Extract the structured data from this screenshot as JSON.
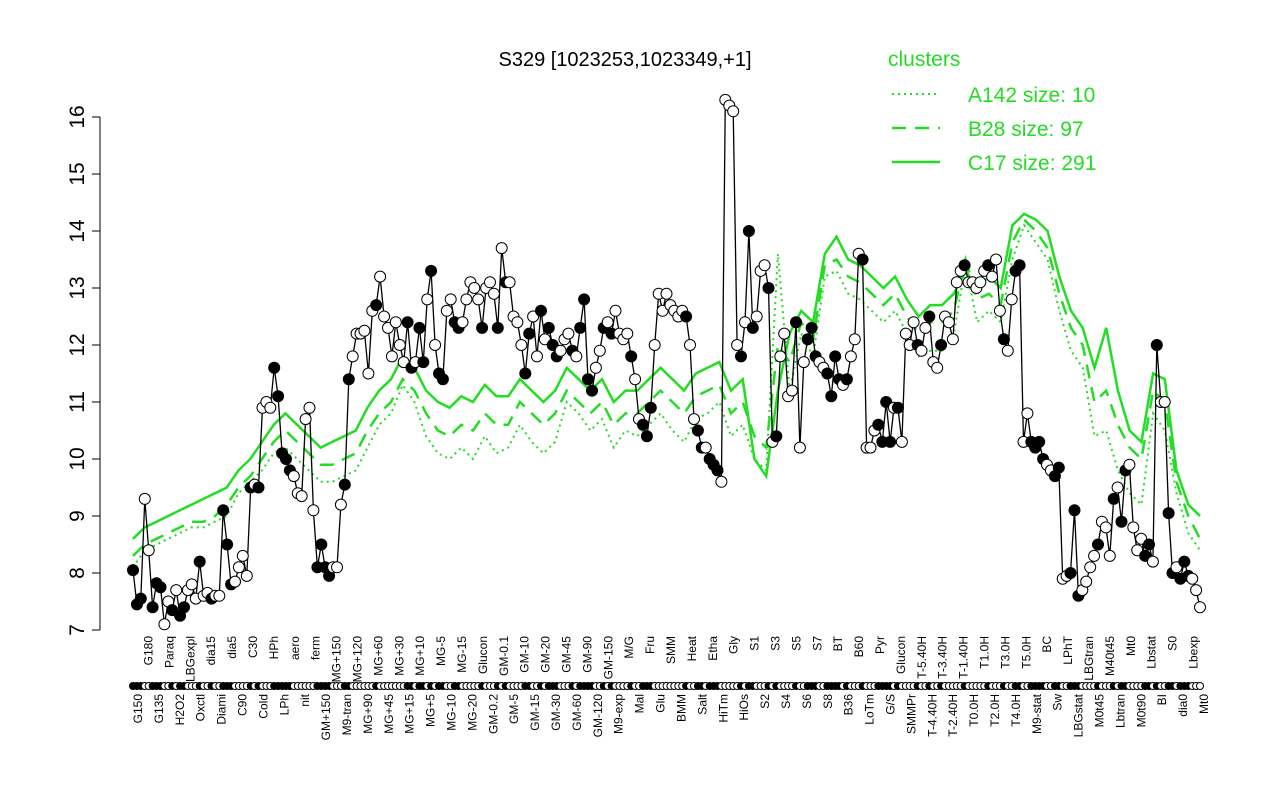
{
  "chart_data": {
    "type": "line",
    "title": "S329 [1023253,1023349,+1]",
    "xlabel": "",
    "ylabel": "",
    "ylim": [
      7,
      16.5
    ],
    "yticks": [
      7,
      8,
      9,
      10,
      11,
      12,
      13,
      14,
      15,
      16
    ],
    "grid": false,
    "legend_position": "top-right",
    "legend": {
      "title": "clusters",
      "entries": [
        {
          "label": "A142 size: 10",
          "style": "dotted"
        },
        {
          "label": "B28 size: 97",
          "style": "dashed"
        },
        {
          "label": "C17 size: 291",
          "style": "solid"
        }
      ]
    },
    "xtick_labels": [
      "G150",
      "G180",
      "G135",
      "Paraq",
      "H2O2",
      "LBGexpl",
      "Oxctl",
      "dia15",
      "Diami",
      "dia5",
      "C90",
      "C30",
      "Cold",
      "HPh",
      "LPh",
      "aero",
      "nit",
      "ferm",
      "GM+150",
      "MG+150",
      "M9-tran",
      "MG+120",
      "MG+90",
      "MG+60",
      "MG+45",
      "MG+30",
      "MG+15",
      "MG+10",
      "MG+5",
      "MG-5",
      "MG-10",
      "MG-15",
      "MG-20",
      "Glucon",
      "GM-0.2",
      "GM-0.1",
      "GM-5",
      "GM-10",
      "GM-15",
      "GM-20",
      "GM-30",
      "GM-45",
      "GM-60",
      "GM-90",
      "GM-120",
      "GM-150",
      "M9-exp",
      "M/G",
      "Mal",
      "Fru",
      "Glu",
      "SMM",
      "BMM",
      "Heat",
      "Salt",
      "Etha",
      "HiTm",
      "Gly",
      "HiOs",
      "S1",
      "S2",
      "S3",
      "S4",
      "S5",
      "S6",
      "S7",
      "S8",
      "BT",
      "B36",
      "B60",
      "LoTm",
      "Pyr",
      "G/S",
      "Glucon",
      "SMMPr",
      "T-5.40H",
      "T-4.40H",
      "T-3.40H",
      "T-2.40H",
      "T-1.40H",
      "T0.0H",
      "T1.0H",
      "T2.0H",
      "T3.0H",
      "T4.0H",
      "T5.0H",
      "M9-stat",
      "BC",
      "Sw",
      "LPhT",
      "LBGstat",
      "LBGtran",
      "M0t45",
      "M40t45",
      "Lbtran",
      "Mt0",
      "M0t90",
      "Lbstat",
      "BI",
      "S0",
      "dia0",
      "Lbexp",
      "Mt0"
    ],
    "series": [
      {
        "name": "S329",
        "values": [
          8.05,
          7.45,
          7.55,
          9.3,
          8.4,
          7.4,
          7.82,
          7.75,
          7.1,
          7.5,
          7.35,
          7.7,
          7.25,
          7.4,
          7.7,
          7.8,
          7.55,
          8.2,
          7.6,
          7.65,
          7.55,
          7.6,
          7.6,
          9.1,
          8.5,
          7.8,
          7.85,
          8.1,
          8.3,
          7.95,
          9.5,
          9.55,
          9.5,
          10.9,
          11.0,
          10.9,
          11.6,
          11.1,
          10.1,
          10.0,
          9.8,
          9.7,
          9.4,
          9.35,
          10.7,
          10.9,
          9.1,
          8.1,
          8.5,
          8.1,
          7.95,
          8.1,
          8.1,
          9.2,
          9.55,
          11.4,
          11.8,
          12.2,
          12.2,
          12.25,
          11.5,
          12.6,
          12.7,
          13.2,
          12.5,
          12.3,
          11.8,
          12.4,
          12.0,
          11.7,
          12.4,
          11.6,
          11.7,
          12.3,
          11.7,
          12.8,
          13.3,
          12.0,
          11.5,
          11.4,
          12.6,
          12.8,
          12.4,
          12.3,
          12.4,
          12.8,
          13.1,
          13.0,
          12.8,
          12.3,
          13.0,
          13.1,
          12.9,
          12.3,
          13.7,
          13.1,
          13.1,
          12.5,
          12.4,
          12.0,
          11.5,
          12.2,
          12.5,
          11.8,
          12.6,
          12.1,
          12.3,
          12.0,
          11.8,
          11.9,
          12.1,
          12.2,
          11.9,
          11.8,
          12.3,
          12.8,
          11.4,
          11.2,
          11.6,
          11.9,
          12.3,
          12.4,
          12.2,
          12.6,
          12.2,
          12.1,
          12.2,
          11.8,
          11.4,
          10.7,
          10.6,
          10.4,
          10.9,
          12.0,
          12.9,
          12.6,
          12.9,
          12.7,
          12.6,
          12.5,
          12.6,
          12.5,
          12.0,
          10.7,
          10.5,
          10.2,
          10.2,
          10.0,
          9.9,
          9.8,
          9.6,
          16.3,
          16.2,
          16.1,
          12.0,
          11.8,
          12.4,
          14.0,
          12.3,
          12.5,
          13.3,
          13.4,
          13.0,
          10.3,
          10.4,
          11.8,
          12.2,
          11.1,
          11.2,
          12.4,
          10.2,
          11.7,
          12.1,
          12.3,
          11.8,
          11.7,
          11.6,
          11.5,
          11.1,
          11.8,
          11.4,
          11.3,
          11.4,
          11.8,
          12.1,
          13.6,
          13.5,
          10.2,
          10.2,
          10.5,
          10.6,
          10.3,
          11.0,
          10.3,
          10.9,
          10.9,
          10.3,
          12.2,
          12.0,
          12.4,
          12.0,
          11.9,
          12.3,
          12.5,
          11.7,
          11.6,
          12.0,
          12.5,
          12.4,
          12.1,
          13.1,
          13.3,
          13.4,
          13.1,
          13.1,
          13.0,
          13.1,
          13.3,
          13.4,
          13.2,
          13.5,
          12.6,
          12.1,
          11.9,
          12.8,
          13.3,
          13.4,
          10.3,
          10.8,
          10.3,
          10.2,
          10.3,
          10.0,
          9.9,
          9.8,
          9.7,
          9.85,
          7.9,
          7.95,
          8.0,
          9.1,
          7.6,
          7.7,
          7.85,
          8.1,
          8.3,
          8.5,
          8.9,
          8.8,
          8.3,
          9.3,
          9.5,
          8.9,
          9.8,
          9.9,
          8.8,
          8.4,
          8.6,
          8.3,
          8.5,
          8.2,
          12.0,
          11.0,
          11.0,
          9.05,
          8.0,
          8.1,
          7.9,
          8.2,
          7.95,
          7.9,
          7.7,
          7.4
        ],
        "markers_hollow": [
          false,
          false,
          false,
          true,
          true,
          false,
          false,
          false,
          true,
          true,
          false,
          true,
          false,
          false,
          true,
          true,
          true,
          false,
          true,
          true,
          false,
          true,
          true,
          false,
          false,
          false,
          true,
          true,
          true,
          true,
          false,
          true,
          false,
          true,
          true,
          true,
          false,
          false,
          false,
          false,
          false,
          true,
          true,
          true,
          true,
          true,
          true,
          false,
          false,
          false,
          false,
          true,
          true,
          true,
          false,
          false,
          true,
          true,
          true,
          true,
          true,
          true,
          false,
          true,
          true,
          true,
          true,
          true,
          true,
          true,
          false,
          false,
          true,
          false,
          false,
          true,
          false,
          true,
          false,
          false,
          true,
          true,
          false,
          false,
          true,
          true,
          true,
          true,
          true,
          false,
          true,
          true,
          true,
          false,
          true,
          false,
          true,
          true,
          true,
          true,
          false,
          false,
          true,
          true,
          false,
          true,
          false,
          false,
          false,
          true,
          true,
          true,
          false,
          true,
          false,
          false,
          false,
          false,
          true,
          true,
          false,
          true,
          false,
          true,
          true,
          true,
          true,
          false,
          true,
          true,
          false,
          false,
          false,
          true,
          true,
          true,
          true,
          true,
          true,
          true,
          true,
          false,
          true,
          true,
          false,
          false,
          true,
          false,
          false,
          false,
          true,
          true,
          true,
          true,
          true,
          false,
          true,
          false,
          false,
          true,
          true,
          true,
          false,
          true,
          false,
          true,
          true,
          true,
          true,
          false,
          true,
          true,
          false,
          false,
          false,
          true,
          true,
          false,
          false,
          false,
          false,
          true,
          false,
          true,
          true,
          true,
          false,
          true,
          true,
          true,
          false,
          false,
          false,
          false,
          true,
          false,
          true,
          true,
          true,
          true,
          false,
          true,
          true,
          false,
          true,
          true,
          false,
          true,
          true,
          true,
          true,
          true,
          false,
          true,
          true,
          true,
          true,
          true,
          false,
          true,
          true,
          true,
          false,
          true,
          true,
          false,
          false,
          true,
          true,
          false,
          false,
          false,
          false,
          true,
          true,
          false,
          false,
          true,
          true,
          false,
          false,
          false,
          true,
          true,
          true,
          true,
          false,
          true,
          true,
          true,
          false,
          true,
          false,
          false,
          true,
          true,
          true,
          true,
          false,
          false,
          true,
          false,
          true,
          true,
          false,
          false,
          true,
          false,
          false,
          false,
          true,
          true,
          true,
          false,
          false,
          true,
          true,
          false,
          true,
          true,
          true,
          true,
          false,
          false,
          true,
          true,
          false
        ]
      },
      {
        "name": "A142 size: 10",
        "style": "dotted",
        "values": [
          8.1,
          8.4,
          8.5,
          8.6,
          8.7,
          8.8,
          8.8,
          8.9,
          9.0,
          9.4,
          9.6,
          9.8,
          10.1,
          10.2,
          10.0,
          9.8,
          9.6,
          9.6,
          9.7,
          9.8,
          10.2,
          10.6,
          10.8,
          11.3,
          11.0,
          10.4,
          10.1,
          10.0,
          10.2,
          10.0,
          10.4,
          10.1,
          10.2,
          10.6,
          10.3,
          10.1,
          10.3,
          11.0,
          10.8,
          10.5,
          10.7,
          10.2,
          10.5,
          10.4,
          10.6,
          10.8,
          10.5,
          10.3,
          10.7,
          10.8,
          11.0,
          10.4,
          10.6,
          10.0,
          9.8,
          13.6,
          11.2,
          12.2,
          11.8,
          13.2,
          13.3,
          12.9,
          12.8,
          12.6,
          12.4,
          12.6,
          12.2,
          11.8,
          11.9,
          11.9,
          12.2,
          13.4,
          12.4,
          12.6,
          12.4,
          13.5,
          14.1,
          13.8,
          13.5,
          12.6,
          11.9,
          11.6,
          10.4,
          10.5,
          9.8,
          9.4,
          9.2,
          10.8,
          10.5,
          9.4,
          8.7,
          8.4
        ]
      },
      {
        "name": "B28 size: 97",
        "style": "dashed",
        "values": [
          8.3,
          8.5,
          8.6,
          8.7,
          8.8,
          8.9,
          8.9,
          9.0,
          9.2,
          9.5,
          9.7,
          10.0,
          10.3,
          10.5,
          10.3,
          10.1,
          9.9,
          9.9,
          10.0,
          10.1,
          10.5,
          10.8,
          11.0,
          11.4,
          11.2,
          10.8,
          10.5,
          10.4,
          10.6,
          10.5,
          10.8,
          10.6,
          10.6,
          11.0,
          10.8,
          10.6,
          10.8,
          11.2,
          11.0,
          10.8,
          11.0,
          10.6,
          10.8,
          10.8,
          11.0,
          11.2,
          11.0,
          10.8,
          11.1,
          11.2,
          11.3,
          10.8,
          11.0,
          10.4,
          10.2,
          12.0,
          11.7,
          12.4,
          12.1,
          13.4,
          13.5,
          13.2,
          13.1,
          12.9,
          12.7,
          12.9,
          12.5,
          12.2,
          12.4,
          12.4,
          12.6,
          13.5,
          12.8,
          12.9,
          12.7,
          13.8,
          14.2,
          14.0,
          13.7,
          12.9,
          12.3,
          12.0,
          11.0,
          11.2,
          10.6,
          10.2,
          10.0,
          11.2,
          11.0,
          9.6,
          9.0,
          8.6
        ]
      },
      {
        "name": "C17 size: 291",
        "style": "solid",
        "values": [
          8.6,
          8.8,
          8.9,
          9.0,
          9.1,
          9.2,
          9.3,
          9.4,
          9.5,
          9.8,
          10.0,
          10.3,
          10.6,
          10.8,
          10.6,
          10.4,
          10.2,
          10.3,
          10.4,
          10.5,
          10.9,
          11.2,
          11.4,
          11.8,
          11.6,
          11.2,
          11.0,
          10.9,
          11.1,
          11.0,
          11.3,
          11.1,
          11.1,
          11.4,
          11.2,
          11.0,
          11.2,
          11.6,
          11.4,
          11.2,
          11.4,
          11.0,
          11.2,
          11.2,
          11.4,
          11.6,
          11.4,
          11.2,
          11.5,
          11.6,
          11.7,
          11.2,
          11.4,
          10.0,
          9.7,
          11.2,
          12.2,
          12.6,
          12.4,
          13.6,
          13.9,
          13.5,
          13.4,
          13.2,
          13.0,
          13.2,
          12.8,
          12.5,
          12.7,
          12.7,
          12.9,
          13.3,
          13.0,
          13.2,
          13.0,
          14.1,
          14.3,
          14.2,
          14.0,
          13.2,
          12.6,
          12.3,
          11.6,
          12.3,
          11.2,
          10.5,
          10.3,
          11.5,
          11.4,
          9.8,
          9.2,
          9.0
        ]
      }
    ]
  }
}
